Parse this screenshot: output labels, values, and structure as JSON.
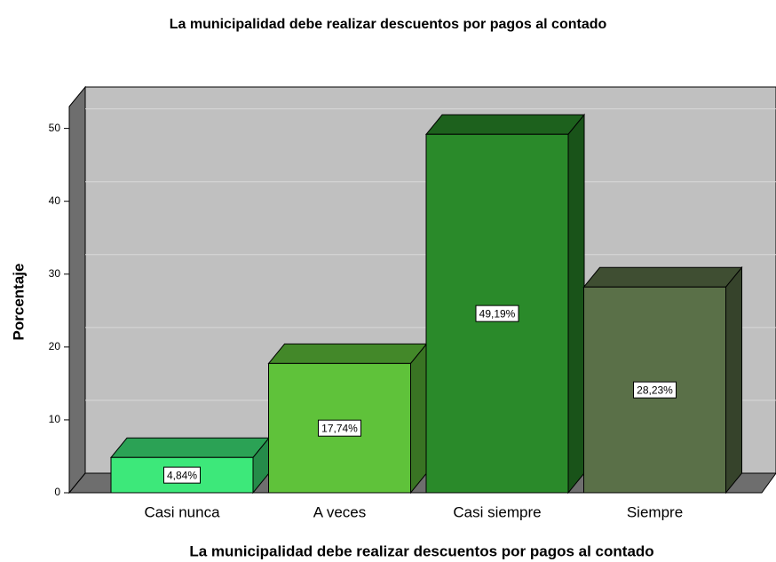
{
  "chart_data": {
    "type": "bar3d",
    "title": "La municipalidad debe realizar descuentos por pagos al contado",
    "x_label": "La municipalidad debe realizar descuentos por pagos al contado",
    "y_label": "Porcentaje",
    "categories": [
      "Casi nunca",
      "A veces",
      "Casi siempre",
      "Siempre"
    ],
    "values": [
      4.84,
      17.74,
      49.19,
      28.23
    ],
    "value_labels": [
      "4,84%",
      "17,74%",
      "49,19%",
      "28,23%"
    ],
    "colors": [
      "#3de87a",
      "#5fc23a",
      "#2a8a2a",
      "#5a7048"
    ],
    "ylim": [
      0,
      53
    ],
    "yticks": [
      0,
      10,
      20,
      30,
      40,
      50
    ],
    "grid": true
  }
}
